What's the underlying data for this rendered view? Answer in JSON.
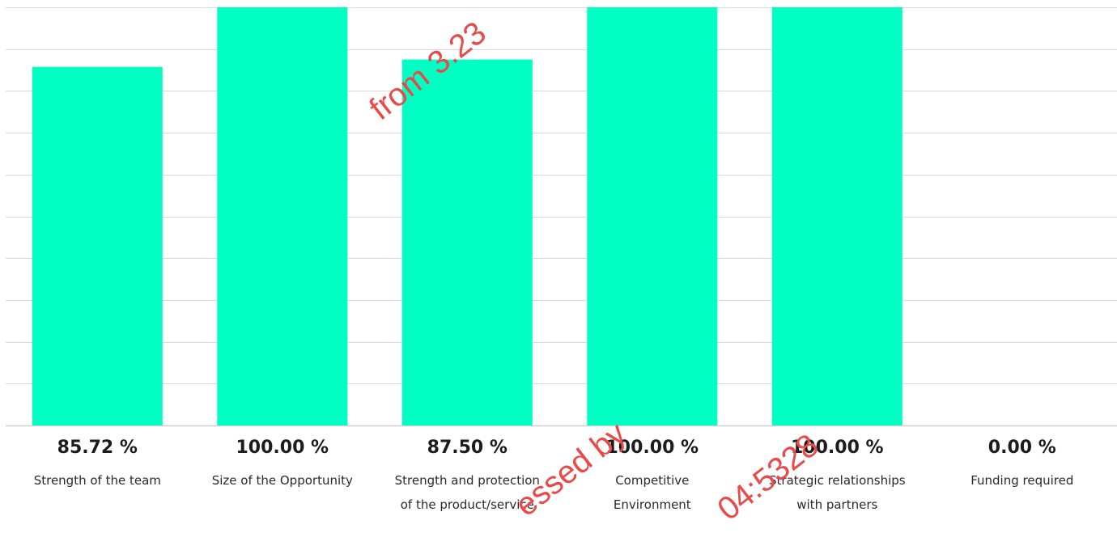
{
  "chart_data": {
    "type": "bar",
    "categories": [
      [
        "Strength of the team"
      ],
      [
        "Size of the Opportunity"
      ],
      [
        "Strength and protection",
        "of the product/service"
      ],
      [
        "Competitive",
        "Environment"
      ],
      [
        "Strategic relationships",
        "with partners"
      ],
      [
        "Funding required"
      ]
    ],
    "values": [
      85.72,
      100.0,
      87.5,
      100.0,
      100.0,
      0.0
    ],
    "value_labels": [
      "85.72 %",
      "100.00 %",
      "87.50 %",
      "100.00 %",
      "100.00 %",
      "0.00 %"
    ],
    "ylim": [
      0,
      100
    ],
    "gridlines": 10,
    "grid": true,
    "bar_color": "#00ffc2",
    "grid_color": "#d9d9d9",
    "axis_color": "#cfcfcf"
  },
  "watermark": {
    "color": "#e84a4a",
    "fragments": [
      "from 3.23",
      "essed by",
      "04:5328"
    ]
  }
}
